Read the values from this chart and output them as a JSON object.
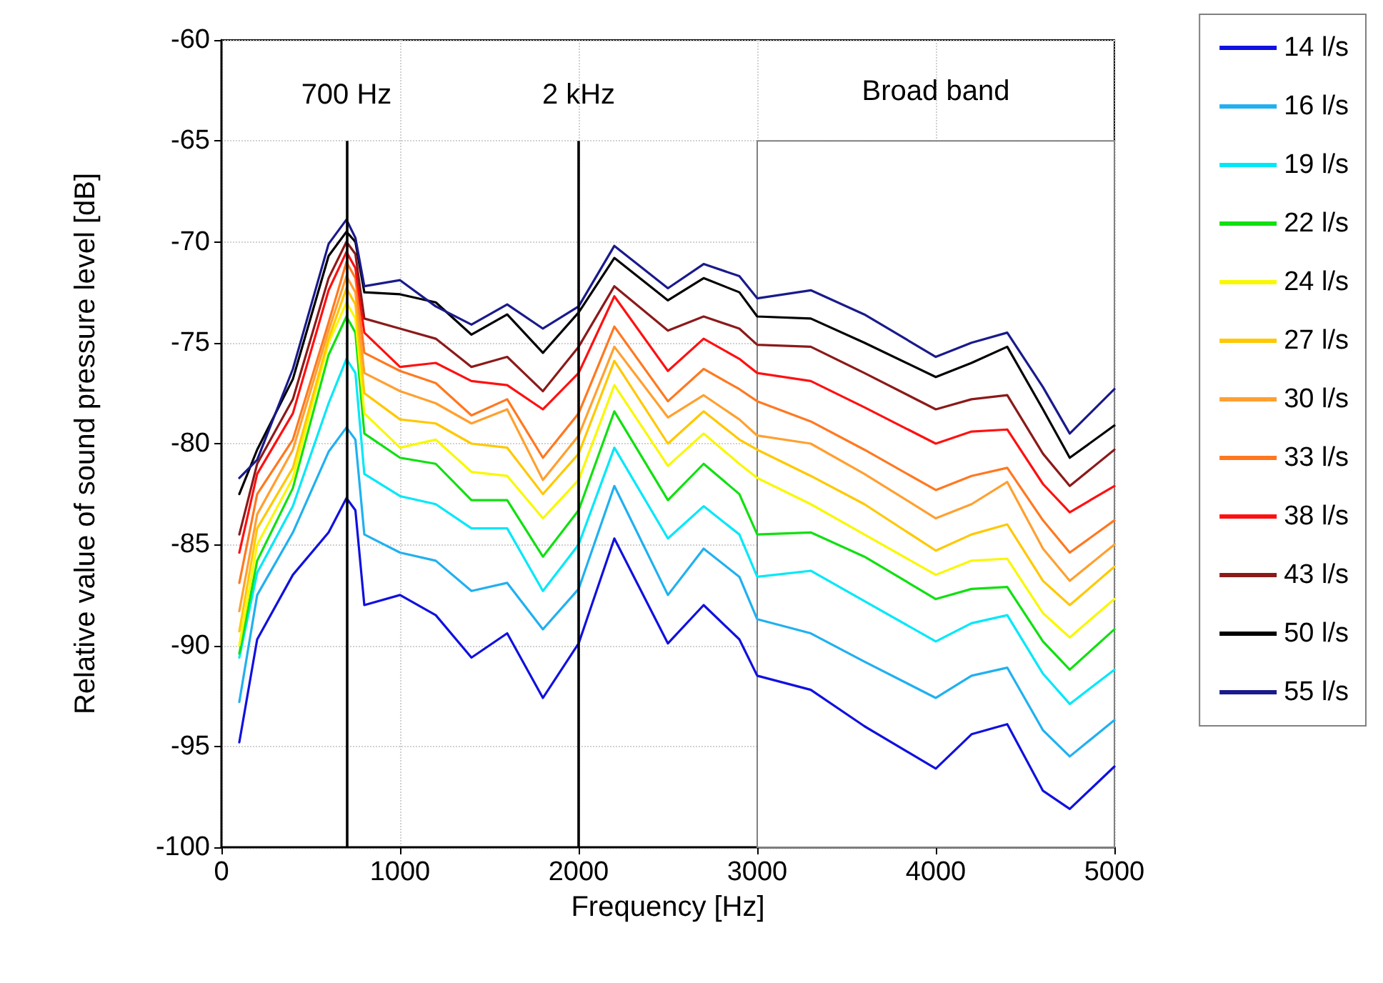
{
  "chart_data": {
    "type": "line",
    "xlabel": "Frequency [Hz]",
    "ylabel": "Relative value of sound pressure level [dB]",
    "xlim": [
      0,
      5000
    ],
    "xticks": [
      0,
      1000,
      2000,
      3000,
      4000,
      5000
    ],
    "ylim": [
      -100,
      -60
    ],
    "yticks": [
      -100,
      -95,
      -90,
      -85,
      -80,
      -75,
      -70,
      -65,
      -60
    ],
    "grid": true,
    "legend": "right",
    "marker": "none",
    "line_style": "solid",
    "x": [
      100,
      200,
      400,
      600,
      700,
      750,
      800,
      1000,
      1200,
      1400,
      1600,
      1800,
      2000,
      2200,
      2500,
      2700,
      2900,
      3000,
      3300,
      3600,
      4000,
      4200,
      4400,
      4600,
      4750,
      5000
    ],
    "ref_lines": [
      {
        "axis": "x",
        "value": 700,
        "label": "700 Hz",
        "color": "#000000"
      },
      {
        "axis": "x",
        "value": 2000,
        "label": "2 kHz",
        "color": "#000000"
      }
    ],
    "bands": [
      {
        "axis": "x",
        "from": 3000,
        "to": 5000,
        "label": "Broad band",
        "color": "#808080"
      }
    ],
    "series": [
      {
        "name": "14 l/s",
        "color": "#1010e0",
        "values": [
          -94.8,
          -89.7,
          -86.5,
          -84.4,
          -82.7,
          -83.3,
          -88,
          -87.5,
          -88.5,
          -90.6,
          -89.4,
          -92.6,
          -89.9,
          -84.7,
          -89.9,
          -88,
          -89.7,
          -91.5,
          -92.2,
          -94,
          -96.1,
          -94.4,
          -93.9,
          -97.2,
          -98.1,
          -96
        ]
      },
      {
        "name": "16 l/s",
        "color": "#20b0f0",
        "values": [
          -92.8,
          -87.5,
          -84.4,
          -80.4,
          -79.2,
          -79.8,
          -84.5,
          -85.4,
          -85.8,
          -87.3,
          -86.9,
          -89.2,
          -87.2,
          -82.1,
          -87.5,
          -85.2,
          -86.6,
          -88.7,
          -89.4,
          -90.8,
          -92.6,
          -91.5,
          -91.1,
          -94.2,
          -95.5,
          -93.7
        ]
      },
      {
        "name": "19 l/s",
        "color": "#00e8f8",
        "values": [
          -90.6,
          -86.4,
          -83.1,
          -78,
          -75.8,
          -76.5,
          -81.5,
          -82.6,
          -83,
          -84.2,
          -84.2,
          -87.3,
          -85,
          -80.2,
          -84.7,
          -83.1,
          -84.5,
          -86.6,
          -86.3,
          -87.8,
          -89.8,
          -88.9,
          -88.5,
          -91.4,
          -92.9,
          -91.2
        ]
      },
      {
        "name": "22 l/s",
        "color": "#10e010",
        "values": [
          -90.4,
          -85.8,
          -82.2,
          -75.6,
          -73.7,
          -74.5,
          -79.5,
          -80.7,
          -81,
          -82.8,
          -82.8,
          -85.6,
          -83.3,
          -78.4,
          -82.8,
          -81,
          -82.5,
          -84.5,
          -84.4,
          -85.6,
          -87.7,
          -87.2,
          -87.1,
          -89.8,
          -91.2,
          -89.2
        ]
      },
      {
        "name": "24 l/s",
        "color": "#f8f800",
        "values": [
          -90,
          -85,
          -81.7,
          -75,
          -73,
          -73.8,
          -78.5,
          -80.2,
          -79.8,
          -81.4,
          -81.6,
          -83.7,
          -81.8,
          -77.1,
          -81.1,
          -79.5,
          -81,
          -81.7,
          -83,
          -84.5,
          -86.5,
          -85.8,
          -85.7,
          -88.4,
          -89.6,
          -87.7
        ]
      },
      {
        "name": "27 l/s",
        "color": "#ffc800",
        "values": [
          -89.3,
          -84.2,
          -81.2,
          -74.8,
          -72.3,
          -73.1,
          -77.5,
          -78.8,
          -79,
          -80,
          -80.2,
          -82.5,
          -80.5,
          -75.9,
          -80,
          -78.4,
          -79.8,
          -80.3,
          -81.6,
          -83,
          -85.3,
          -84.5,
          -84,
          -86.8,
          -88,
          -86.1
        ]
      },
      {
        "name": "30 l/s",
        "color": "#ffa030",
        "values": [
          -88.3,
          -83.5,
          -80.3,
          -74.4,
          -71.7,
          -72.5,
          -76.5,
          -77.4,
          -78,
          -79,
          -78.3,
          -81.8,
          -79.6,
          -75.2,
          -78.7,
          -77.6,
          -78.8,
          -79.6,
          -80,
          -81.5,
          -83.7,
          -83,
          -81.9,
          -85.2,
          -86.8,
          -85
        ]
      },
      {
        "name": "33 l/s",
        "color": "#ff7820",
        "values": [
          -86.9,
          -82.5,
          -79.8,
          -74,
          -71,
          -71.8,
          -75.5,
          -76.4,
          -77,
          -78.6,
          -77.8,
          -80.7,
          -78.5,
          -74.2,
          -77.9,
          -76.3,
          -77.3,
          -77.9,
          -78.9,
          -80.3,
          -82.3,
          -81.6,
          -81.2,
          -83.8,
          -85.4,
          -83.8
        ]
      },
      {
        "name": "38 l/s",
        "color": "#ff1010",
        "values": [
          -85.4,
          -81.5,
          -78.5,
          -72.4,
          -70.5,
          -71.3,
          -74.5,
          -76.2,
          -76,
          -76.9,
          -77.1,
          -78.3,
          -76.5,
          -72.7,
          -76.4,
          -74.8,
          -75.8,
          -76.5,
          -76.9,
          -78.2,
          -80,
          -79.4,
          -79.3,
          -82,
          -83.4,
          -82.1
        ]
      },
      {
        "name": "43 l/s",
        "color": "#8b1a1a",
        "values": [
          -84.5,
          -81,
          -77.8,
          -71.8,
          -70,
          -70.6,
          -73.8,
          -74.3,
          -74.8,
          -76.2,
          -75.7,
          -77.4,
          -75.2,
          -72.2,
          -74.4,
          -73.7,
          -74.3,
          -75.1,
          -75.2,
          -76.5,
          -78.3,
          -77.8,
          -77.6,
          -80.5,
          -82.1,
          -80.3
        ]
      },
      {
        "name": "50 l/s",
        "color": "#000000",
        "values": [
          -82.5,
          -80.3,
          -76.8,
          -70.7,
          -69.5,
          -70,
          -72.5,
          -72.6,
          -73,
          -74.6,
          -73.6,
          -75.5,
          -73.5,
          -70.8,
          -72.9,
          -71.8,
          -72.5,
          -73.7,
          -73.8,
          -75,
          -76.7,
          -76,
          -75.2,
          -78.3,
          -80.7,
          -79.1
        ]
      },
      {
        "name": "55 l/s",
        "color": "#1a1a8c",
        "values": [
          -81.7,
          -80.8,
          -76.3,
          -70.1,
          -68.9,
          -69.8,
          -72.2,
          -71.9,
          -73.2,
          -74.1,
          -73.1,
          -74.3,
          -73.2,
          -70.2,
          -72.3,
          -71.1,
          -71.7,
          -72.8,
          -72.4,
          -73.6,
          -75.7,
          -75,
          -74.5,
          -77.2,
          -79.5,
          -77.3
        ]
      }
    ]
  }
}
